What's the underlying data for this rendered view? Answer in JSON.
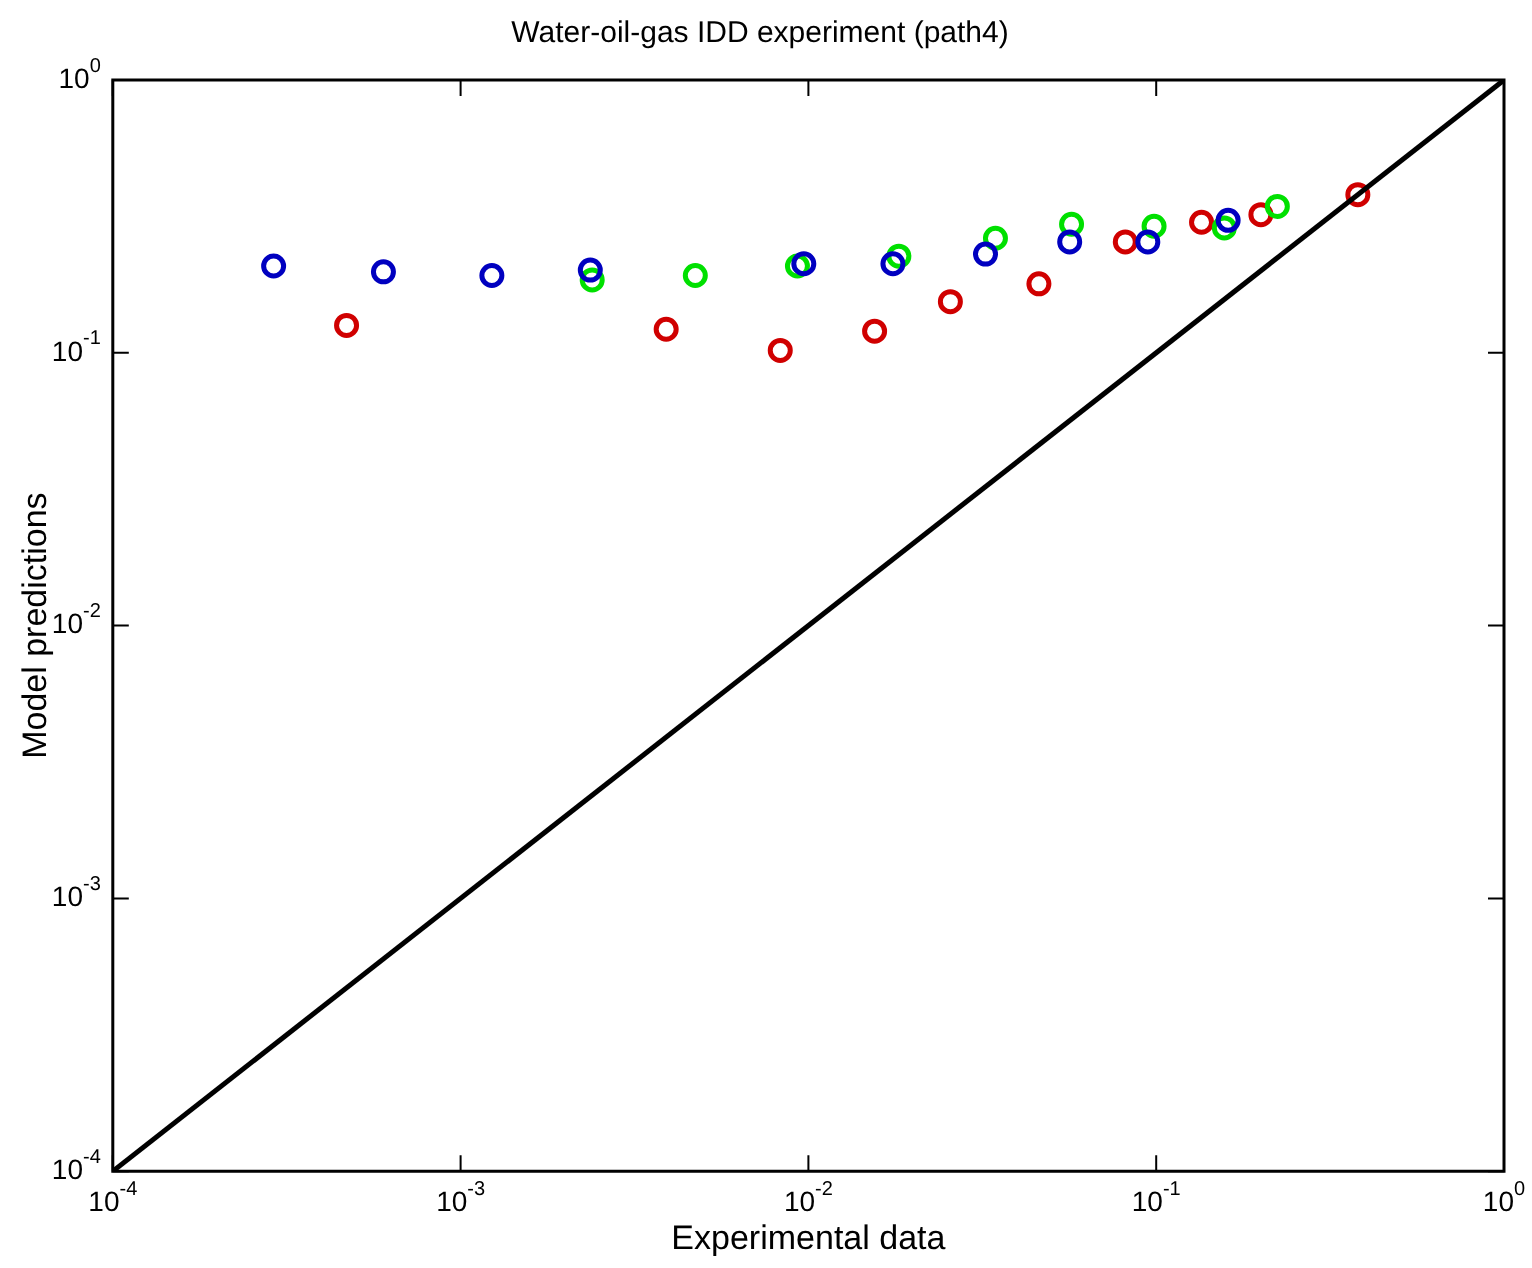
{
  "chart_data": {
    "type": "scatter",
    "title": "Water-oil-gas IDD experiment (path4)",
    "xlabel": "Experimental data",
    "ylabel": "Model predictions",
    "log": "xy",
    "grid": false,
    "legend": false,
    "marker": "circle",
    "xlim": [
      0.0001,
      1
    ],
    "ylim": [
      0.0001,
      1
    ],
    "xticks": [
      {
        "value": 0.0001,
        "label": "10$^{-4}$"
      },
      {
        "value": 0.001,
        "label": "10$^{-3}$"
      },
      {
        "value": 0.01,
        "label": "10$^{-2}$"
      },
      {
        "value": 0.1,
        "label": "10$^{-1}$"
      },
      {
        "value": 1,
        "label": "10$^{0}$"
      }
    ],
    "yticks": [
      {
        "value": 0.0001,
        "label": "10$^{-4}$"
      },
      {
        "value": 0.001,
        "label": "10$^{-3}$"
      },
      {
        "value": 0.01,
        "label": "10$^{-2}$"
      },
      {
        "value": 0.1,
        "label": "10$^{-1}$"
      },
      {
        "value": 1,
        "label": "10$^{0}$"
      }
    ],
    "series": [
      {
        "type": "line",
        "color": "#000000",
        "marker": "none",
        "x": [
          0.0001,
          1
        ],
        "values": [
          0.0001,
          1
        ]
      },
      {
        "color": "#0000c0",
        "x": [
          0.00029,
          0.0006,
          0.00123,
          0.00236,
          0.0097,
          0.0175,
          0.0323,
          0.0564,
          0.0946,
          0.161
        ],
        "values": [
          0.208,
          0.198,
          0.192,
          0.201,
          0.212,
          0.212,
          0.23,
          0.255,
          0.255,
          0.306
        ]
      },
      {
        "color": "#00e000",
        "x": [
          0.00239,
          0.00473,
          0.0093,
          0.0182,
          0.0345,
          0.0571,
          0.0986,
          0.157,
          0.223
        ],
        "values": [
          0.185,
          0.192,
          0.208,
          0.226,
          0.263,
          0.296,
          0.291,
          0.287,
          0.344
        ]
      },
      {
        "color": "#d00000",
        "x": [
          0.00047,
          0.0039,
          0.0083,
          0.0155,
          0.0256,
          0.046,
          0.0815,
          0.135,
          0.2,
          0.38
        ],
        "values": [
          0.126,
          0.122,
          0.102,
          0.12,
          0.154,
          0.179,
          0.255,
          0.301,
          0.321,
          0.38
        ]
      }
    ]
  }
}
